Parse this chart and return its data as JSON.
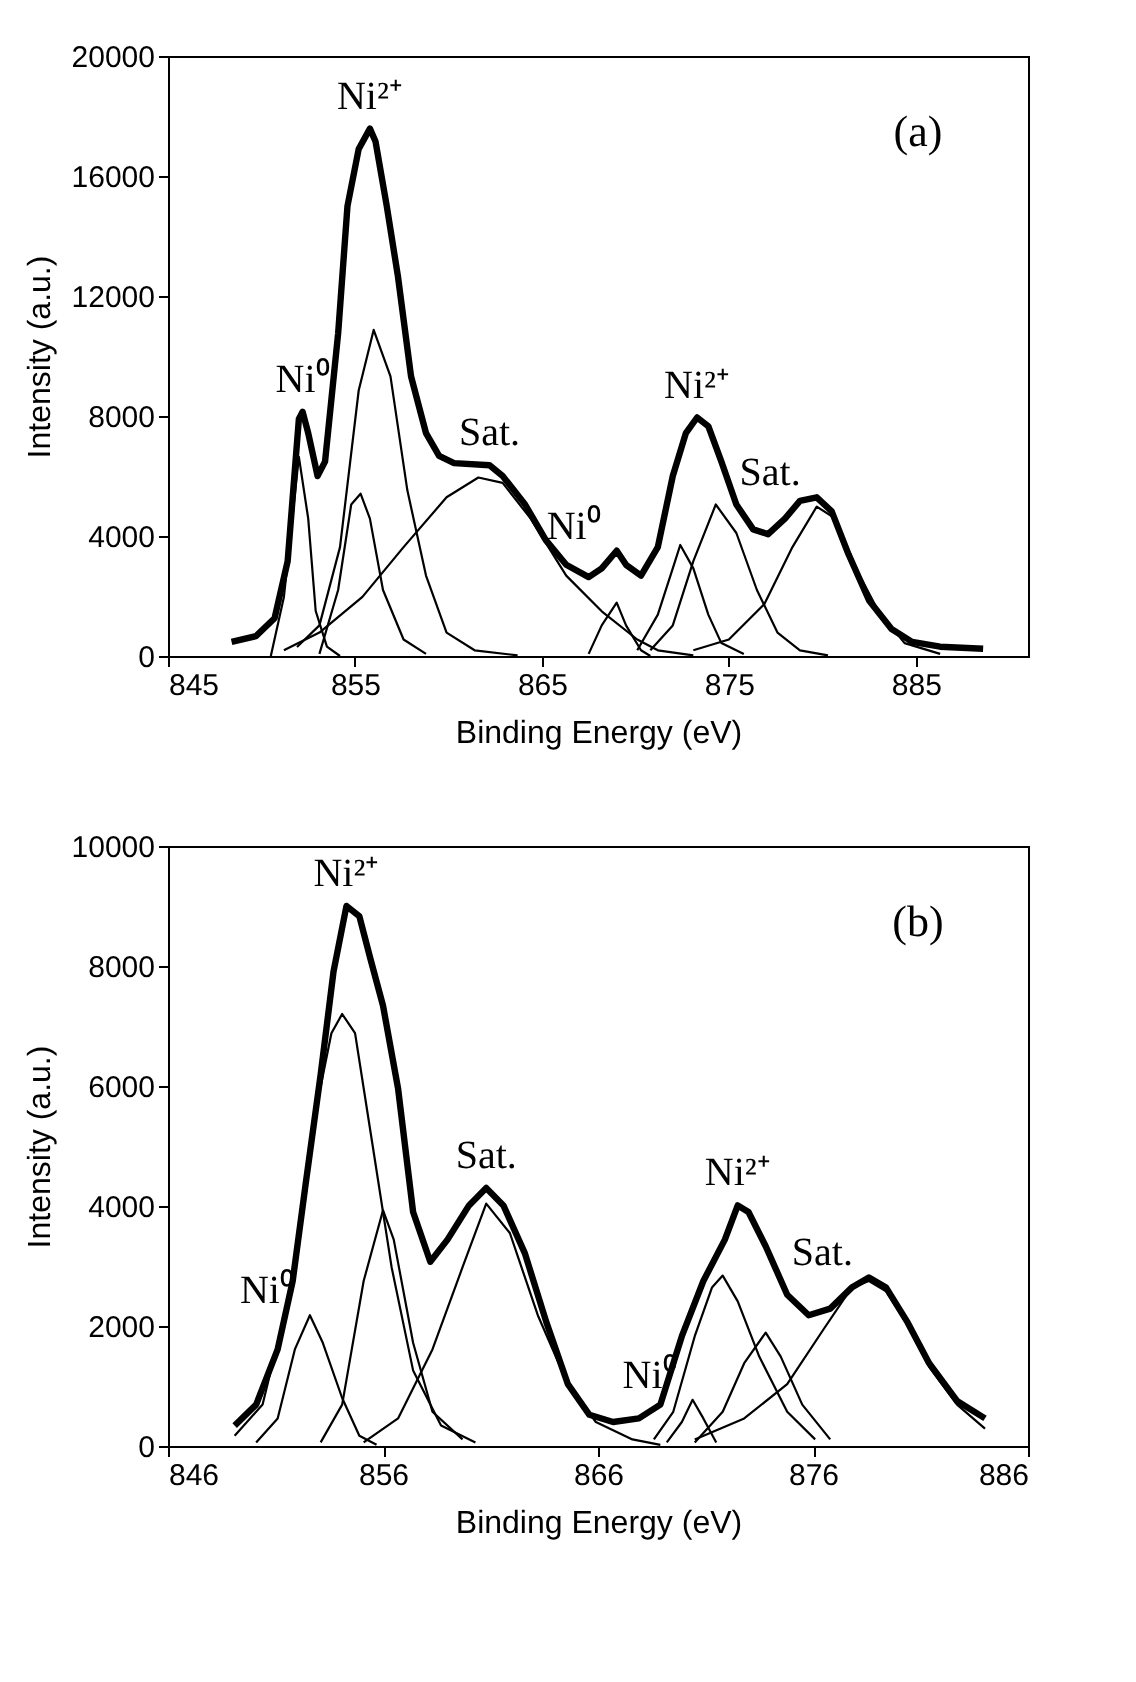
{
  "chart_data": [
    {
      "type": "line",
      "xlabel": "Binding Energy (eV)",
      "ylabel": "Intensity (a.u.)",
      "xlim": [
        845,
        891
      ],
      "xticks": [
        845,
        855,
        865,
        875,
        885
      ],
      "ylim": [
        0,
        20000
      ],
      "yticks": [
        0,
        4000,
        8000,
        12000,
        16000,
        20000
      ],
      "grid": false,
      "marker": "none",
      "line_style": "solid",
      "annotations": [
        {
          "text": "Ni⁰",
          "x": 852.2,
          "y": 8140
        },
        {
          "text": "Ni²⁺",
          "x": 855.8,
          "y": 17580
        },
        {
          "text": "Sat.",
          "x": 862.2,
          "y": 6360
        },
        {
          "text": "Ni⁰",
          "x": 869.0,
          "y": 3510
        },
        {
          "text": "Ni²⁺",
          "x": 873.3,
          "y": 7950
        },
        {
          "text": "Sat.",
          "x": 879.7,
          "y": 5290
        },
        "(a)"
      ],
      "series": [
        {
          "color": "#000000",
          "x": [
            848.4,
            849.7,
            850.7,
            851.4,
            852.0,
            852.2,
            852.5,
            853.0,
            853.4,
            854.1,
            854.6,
            855.2,
            855.8,
            856.1,
            856.7,
            857.3,
            858.0,
            858.8,
            859.5,
            860.3,
            862.2,
            862.9,
            864.1,
            865.2,
            866.3,
            867.5,
            868.2,
            869.0,
            869.5,
            870.3,
            871.2,
            872.0,
            872.7,
            873.3,
            873.9,
            874.6,
            875.4,
            876.3,
            877.1,
            878.0,
            878.8,
            879.7,
            880.5,
            881.4,
            882.5,
            883.7,
            884.8,
            886.3,
            888.6
          ],
          "values": [
            470,
            660,
            1260,
            3160,
            7900,
            8140,
            7430,
            6000,
            6480,
            10750,
            15000,
            16900,
            17580,
            17150,
            15000,
            12650,
            9320,
            7430,
            6670,
            6430,
            6360,
            6000,
            5050,
            3870,
            3040,
            2630,
            2920,
            3510,
            3040,
            2680,
            3630,
            6000,
            7430,
            7950,
            7660,
            6480,
            5050,
            4220,
            4060,
            4580,
            5170,
            5290,
            4820,
            3390,
            1850,
            900,
            470,
            310,
            240
          ]
        },
        {
          "color": "#000000",
          "x": [
            850.5,
            851.2,
            852.0,
            852.5,
            852.9,
            853.5,
            854.2
          ],
          "values": [
            0,
            1970,
            6640,
            4580,
            1500,
            310,
            0
          ]
        },
        {
          "color": "#000000",
          "x": [
            853.1,
            854.1,
            854.8,
            855.3,
            855.8,
            856.5,
            857.6,
            858.8
          ],
          "values": [
            70,
            2200,
            5050,
            5410,
            4580,
            2200,
            550,
            70
          ]
        },
        {
          "color": "#000000",
          "x": [
            851.9,
            853.1,
            854.2,
            855.2,
            856.0,
            856.9,
            857.8,
            858.8,
            859.9,
            861.4,
            863.7
          ],
          "values": [
            300,
            1020,
            3630,
            8850,
            10870,
            9320,
            5530,
            2680,
            780,
            190,
            20
          ]
        },
        {
          "color": "#000000",
          "x": [
            851.2,
            853.1,
            855.4,
            857.6,
            859.9,
            861.6,
            862.9,
            864.4,
            866.3,
            868.2,
            870.1,
            871.2,
            873.1
          ],
          "values": [
            190,
            780,
            1970,
            3630,
            5290,
            5950,
            5770,
            4580,
            2680,
            1490,
            550,
            190,
            20
          ]
        },
        {
          "color": "#000000",
          "x": [
            867.5,
            868.2,
            869.0,
            869.5,
            870.3,
            870.8
          ],
          "values": [
            70,
            1020,
            1780,
            1020,
            190,
            0
          ]
        },
        {
          "color": "#000000",
          "x": [
            870.1,
            871.2,
            872.0,
            872.4,
            873.1,
            873.9,
            874.6,
            875.8
          ],
          "values": [
            190,
            1380,
            2920,
            3700,
            2920,
            1380,
            430,
            70
          ]
        },
        {
          "color": "#000000",
          "x": [
            870.8,
            872.0,
            873.1,
            874.3,
            875.4,
            876.5,
            877.6,
            878.8,
            880.3
          ],
          "values": [
            190,
            1020,
            3160,
            5050,
            4100,
            2200,
            780,
            190,
            20
          ]
        },
        {
          "color": "#000000",
          "x": [
            873.1,
            875.0,
            876.9,
            878.4,
            879.7,
            880.7,
            881.8,
            883.0,
            884.4,
            886.3
          ],
          "values": [
            190,
            550,
            1730,
            3630,
            4980,
            4580,
            2920,
            1490,
            430,
            70
          ]
        }
      ]
    },
    {
      "type": "line",
      "xlabel": "Binding Energy (eV)",
      "ylabel": "Intensity (a.u.)",
      "xlim": [
        846,
        886
      ],
      "xticks": [
        846,
        856,
        866,
        876,
        886
      ],
      "ylim": [
        0,
        10000
      ],
      "yticks": [
        0,
        2000,
        4000,
        6000,
        8000,
        10000
      ],
      "grid": false,
      "marker": "none",
      "line_style": "solid",
      "annotations": [
        {
          "text": "Ni⁰",
          "x": 852.6,
          "y": 2180
        },
        {
          "text": "Ni²⁺",
          "x": 854.3,
          "y": 9000
        },
        {
          "text": "Sat.",
          "x": 860.8,
          "y": 4300
        },
        {
          "text": "Ni⁰",
          "x": 870.4,
          "y": 770
        },
        {
          "text": "Ni²⁺",
          "x": 872.5,
          "y": 4010
        },
        {
          "text": "Sat.",
          "x": 878.6,
          "y": 2810
        },
        "(b)"
      ],
      "series": [
        {
          "color": "#000000",
          "x": [
            849.1,
            850.1,
            851.1,
            851.8,
            852.4,
            853.1,
            853.7,
            854.3,
            854.9,
            855.4,
            856.0,
            856.7,
            857.4,
            858.2,
            859.0,
            860.0,
            860.8,
            861.6,
            862.6,
            863.6,
            864.6,
            865.6,
            866.7,
            867.9,
            868.9,
            869.9,
            870.9,
            871.9,
            872.5,
            873.0,
            873.8,
            874.8,
            875.8,
            876.8,
            877.8,
            878.6,
            879.4,
            880.4,
            881.4,
            882.7,
            884.0
          ],
          "values": [
            340,
            690,
            1610,
            2750,
            4360,
            6190,
            7910,
            9000,
            8830,
            8140,
            7340,
            5960,
            3900,
            3070,
            3440,
            4010,
            4300,
            4010,
            3210,
            2060,
            1030,
            520,
            400,
            460,
            690,
            1830,
            2750,
            3440,
            4010,
            3900,
            3330,
            2520,
            2180,
            2290,
            2640,
            2810,
            2640,
            2060,
            1380,
            750,
            460
          ]
        },
        {
          "color": "#000000",
          "x": [
            850.1,
            851.1,
            851.9,
            852.6,
            853.2,
            854.1,
            854.9,
            855.7
          ],
          "values": [
            60,
            460,
            1610,
            2180,
            1720,
            800,
            170,
            20
          ]
        },
        {
          "color": "#000000",
          "x": [
            849.1,
            850.4,
            851.8,
            852.7,
            853.6,
            854.1,
            854.7,
            855.5,
            856.4,
            857.4,
            858.7,
            860.3
          ],
          "values": [
            170,
            690,
            2750,
            5280,
            6880,
            7200,
            6880,
            5050,
            2980,
            1260,
            340,
            60
          ]
        },
        {
          "color": "#000000",
          "x": [
            853.1,
            854.1,
            855.1,
            856.0,
            856.5,
            857.4,
            858.3,
            859.7
          ],
          "values": [
            60,
            690,
            2750,
            3930,
            3440,
            1720,
            570,
            110
          ]
        },
        {
          "color": "#000000",
          "x": [
            855.1,
            856.7,
            858.3,
            859.7,
            860.8,
            861.9,
            863.2,
            864.6,
            865.9,
            867.6,
            868.9
          ],
          "values": [
            60,
            460,
            1610,
            2980,
            4040,
            3550,
            2180,
            1030,
            400,
            110,
            20
          ]
        },
        {
          "color": "#000000",
          "x": [
            869.2,
            869.9,
            870.4,
            870.9,
            871.5
          ],
          "values": [
            60,
            400,
            770,
            460,
            60
          ]
        },
        {
          "color": "#000000",
          "x": [
            868.6,
            869.5,
            870.5,
            871.3,
            871.8,
            872.5,
            873.5,
            874.8,
            876.1
          ],
          "values": [
            110,
            570,
            1830,
            2640,
            2840,
            2410,
            1490,
            570,
            110
          ]
        },
        {
          "color": "#000000",
          "x": [
            870.5,
            871.8,
            872.8,
            873.8,
            874.5,
            875.5,
            876.8
          ],
          "values": [
            60,
            570,
            1380,
            1890,
            1490,
            690,
            110
          ]
        },
        {
          "color": "#000000",
          "x": [
            870.5,
            872.8,
            874.8,
            876.5,
            877.8,
            878.6,
            879.4,
            880.4,
            881.4,
            882.7,
            884.0
          ],
          "values": [
            110,
            460,
            1030,
            1950,
            2640,
            2750,
            2580,
            2010,
            1320,
            690,
            290
          ]
        }
      ]
    }
  ]
}
